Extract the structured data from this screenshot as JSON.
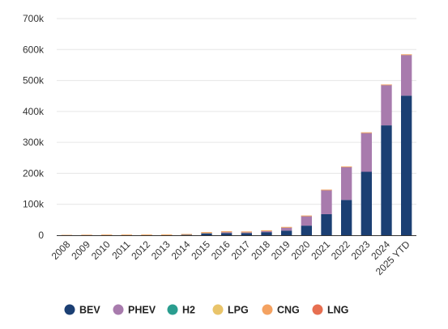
{
  "chart_data": {
    "type": "bar",
    "stacked": true,
    "categories": [
      "2008",
      "2009",
      "2010",
      "2011",
      "2012",
      "2013",
      "2014",
      "2015",
      "2016",
      "2017",
      "2018",
      "2019",
      "2020",
      "2021",
      "2022",
      "2023",
      "2024",
      "2025 YTD"
    ],
    "series": [
      {
        "name": "BEV",
        "color": "#1b3f73",
        "values": [
          300,
          500,
          700,
          900,
          1100,
          1400,
          2500,
          6000,
          7000,
          7000,
          10000,
          15000,
          31000,
          68000,
          114000,
          205000,
          355000,
          451000
        ]
      },
      {
        "name": "PHEV",
        "color": "#a87bad",
        "values": [
          0,
          0,
          0,
          0,
          0,
          100,
          600,
          2500,
          4500,
          4000,
          5000,
          11000,
          32000,
          79000,
          108000,
          127000,
          132000,
          133000
        ]
      },
      {
        "name": "H2",
        "color": "#2a9d8f",
        "values": [
          0,
          0,
          0,
          0,
          0,
          0,
          0,
          0,
          0,
          0,
          0,
          0,
          0,
          0,
          0,
          0,
          0,
          0
        ]
      },
      {
        "name": "LPG",
        "color": "#e9c46a",
        "values": [
          500,
          700,
          800,
          700,
          600,
          400,
          300,
          300,
          200,
          200,
          200,
          200,
          100,
          100,
          100,
          100,
          100,
          100
        ]
      },
      {
        "name": "CNG",
        "color": "#f4a261",
        "values": [
          400,
          600,
          700,
          600,
          600,
          600,
          600,
          1500,
          1200,
          1000,
          800,
          600,
          400,
          200,
          200,
          100,
          100,
          100
        ]
      },
      {
        "name": "LNG",
        "color": "#e76f51",
        "values": [
          0,
          0,
          0,
          0,
          0,
          0,
          0,
          0,
          0,
          0,
          0,
          0,
          0,
          0,
          0,
          0,
          0,
          0
        ]
      }
    ],
    "ylim": [
      0,
      700000
    ],
    "yticks": [
      0,
      100000,
      200000,
      300000,
      400000,
      500000,
      600000,
      700000
    ],
    "ytick_labels": [
      "0",
      "100k",
      "200k",
      "300k",
      "400k",
      "500k",
      "600k",
      "700k"
    ],
    "grid": true,
    "legend_position": "bottom",
    "title": "",
    "xlabel": "",
    "ylabel": ""
  }
}
